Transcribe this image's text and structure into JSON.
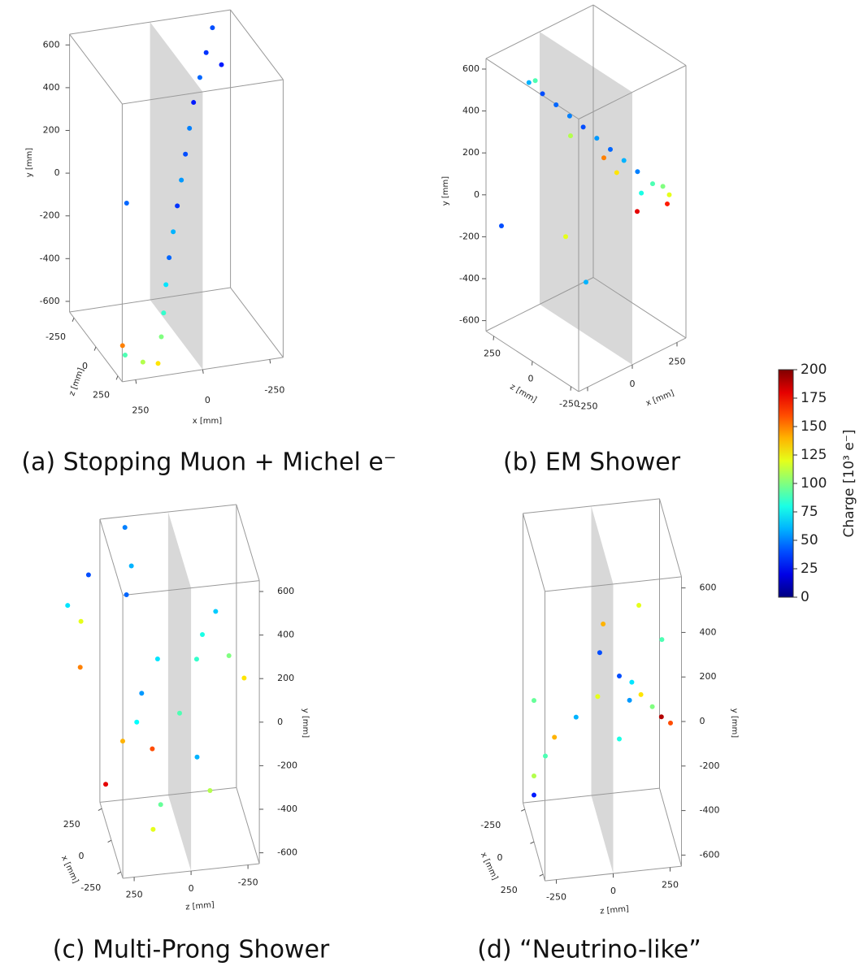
{
  "chart_data": [
    {
      "type": "scatter3d",
      "title": "(a) Stopping Muon + Michel e⁻",
      "xlabel": "x [mm]",
      "ylabel": "y [mm]",
      "zlabel": "z [mm]",
      "xlim": [
        -300,
        300
      ],
      "ylim": [
        -650,
        650
      ],
      "zlim": [
        -300,
        300
      ],
      "xticks": [
        -250,
        0,
        250
      ],
      "yticks": [
        -600,
        -400,
        -200,
        0,
        200,
        400,
        600
      ],
      "zticks": [
        -250,
        0,
        250
      ],
      "points": {
        "x": [
          -200,
          -170,
          -140,
          -110,
          -85,
          -60,
          -35,
          -10,
          15,
          40,
          65,
          90,
          115,
          150,
          200,
          250,
          240,
          -250,
          120
        ],
        "y": [
          640,
          540,
          440,
          340,
          240,
          140,
          40,
          -60,
          -160,
          -260,
          -360,
          -460,
          -540,
          -620,
          -615,
          -600,
          -590,
          430,
          -120
        ],
        "z": [
          -200,
          -180,
          -160,
          -140,
          -110,
          -80,
          -50,
          -20,
          10,
          40,
          80,
          130,
          180,
          250,
          230,
          180,
          120,
          -250,
          -200
        ],
        "charge": [
          40,
          35,
          45,
          30,
          50,
          40,
          55,
          35,
          60,
          45,
          70,
          85,
          100,
          130,
          110,
          90,
          150,
          30,
          45
        ]
      }
    },
    {
      "type": "scatter3d",
      "title": "(b) EM Shower",
      "xlabel": "x [mm]",
      "ylabel": "y [mm]",
      "zlabel": "z [mm]",
      "xlim": [
        -300,
        300
      ],
      "ylim": [
        -650,
        650
      ],
      "zlim": [
        -300,
        300
      ],
      "xticks": [
        -250,
        0,
        250
      ],
      "yticks": [
        -600,
        -400,
        -200,
        0,
        200,
        400,
        600
      ],
      "zticks": [
        -250,
        0,
        250
      ],
      "points": {
        "x": [
          -250,
          -200,
          -150,
          -100,
          -50,
          0,
          50,
          100,
          150,
          200,
          250,
          230,
          240,
          180,
          120,
          -180,
          0,
          100,
          -300,
          0,
          200,
          -200
        ],
        "y": [
          620,
          560,
          500,
          440,
          380,
          320,
          260,
          200,
          140,
          80,
          30,
          0,
          60,
          20,
          100,
          580,
          250,
          150,
          -100,
          -400,
          -100,
          -50
        ],
        "z": [
          80,
          50,
          20,
          -10,
          -40,
          -70,
          -100,
          -130,
          -160,
          -200,
          -250,
          -260,
          -220,
          -150,
          -60,
          120,
          100,
          0,
          200,
          0,
          -100,
          -100
        ],
        "charge": [
          60,
          40,
          45,
          50,
          40,
          55,
          45,
          60,
          50,
          90,
          120,
          170,
          100,
          80,
          130,
          90,
          110,
          150,
          40,
          60,
          180,
          120
        ]
      }
    },
    {
      "type": "scatter3d",
      "title": "(c) Multi-Prong Shower",
      "xlabel": "x [mm]",
      "ylabel": "y [mm]",
      "zlabel": "z [mm]",
      "xlim": [
        -300,
        300
      ],
      "ylim": [
        -650,
        650
      ],
      "zlim": [
        -300,
        300
      ],
      "xticks": [
        -250,
        0,
        250
      ],
      "yticks": [
        -600,
        -400,
        -200,
        0,
        200,
        400,
        600
      ],
      "zticks": [
        -250,
        0,
        250
      ],
      "points": {
        "x": [
          300,
          250,
          200,
          100,
          0,
          -100,
          -200,
          300,
          200,
          100,
          0,
          -100,
          -200,
          100,
          50,
          0,
          -100,
          -200,
          250,
          -50,
          -150,
          150,
          0
        ],
        "y": [
          600,
          450,
          350,
          100,
          -100,
          -250,
          -350,
          400,
          250,
          100,
          250,
          200,
          150,
          -50,
          -150,
          -250,
          -450,
          -500,
          300,
          380,
          -300,
          50,
          -200
        ],
        "z": [
          190,
          170,
          200,
          80,
          0,
          -60,
          -100,
          350,
          400,
          420,
          -100,
          -200,
          -250,
          150,
          180,
          120,
          100,
          150,
          450,
          -150,
          350,
          -100,
          250
        ],
        "charge": [
          50,
          60,
          45,
          70,
          90,
          60,
          110,
          40,
          120,
          150,
          80,
          100,
          130,
          55,
          75,
          160,
          95,
          120,
          70,
          65,
          180,
          85,
          140
        ]
      }
    },
    {
      "type": "scatter3d",
      "title": "(d) “Neutrino-like”",
      "xlabel": "x [mm]",
      "ylabel": "y [mm]",
      "zlabel": "z [mm]",
      "xlim": [
        -300,
        300
      ],
      "ylim": [
        -650,
        650
      ],
      "zlim": [
        -300,
        300
      ],
      "xticks": [
        -250,
        0,
        250
      ],
      "yticks": [
        -600,
        -400,
        -200,
        0,
        200,
        400,
        600
      ],
      "zticks": [
        -250,
        0,
        250
      ],
      "points": {
        "x": [
          0,
          0,
          0,
          0,
          0,
          0,
          0,
          0,
          0,
          0,
          0,
          0,
          0,
          0,
          0,
          0,
          0,
          0,
          0
        ],
        "y": [
          54,
          -28,
          -110,
          -190,
          -270,
          -354,
          20,
          -40,
          -100,
          -182,
          197,
          168,
          295,
          362,
          -440,
          -229,
          -15,
          -60,
          -150
        ],
        "z": [
          75,
          -20,
          -115,
          -210,
          -250,
          -300,
          130,
          170,
          220,
          300,
          262,
          -11,
          4,
          161,
          -300,
          75,
          -300,
          120,
          260
        ],
        "charge": [
          40,
          120,
          60,
          140,
          90,
          110,
          70,
          130,
          100,
          160,
          90,
          40,
          140,
          120,
          30,
          80,
          95,
          55,
          190
        ]
      }
    },
    {
      "type": "colorbar",
      "label": "Charge [10³ e⁻]",
      "ylim": [
        0,
        200
      ],
      "yticks": [
        0,
        25,
        50,
        75,
        100,
        125,
        150,
        175,
        200
      ],
      "colormap": "jet"
    }
  ]
}
